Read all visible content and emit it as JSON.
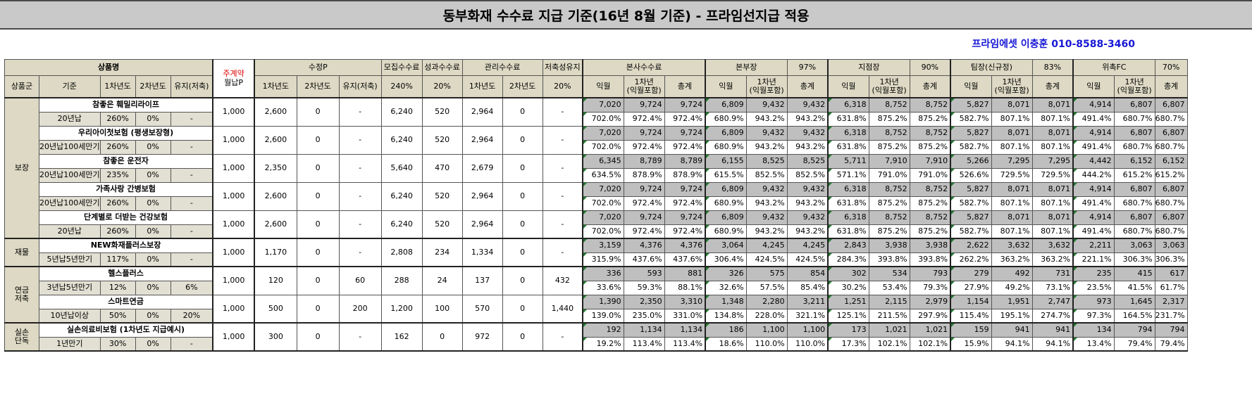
{
  "title": "동부화재 수수료 지급 기준(16년 8월 기준) - 프라임선지급 적용",
  "contact": "프라임에셋 이충훈 010-8588-3460",
  "header": {
    "product_name": "상품명",
    "main_contract_1": "주계약",
    "main_contract_2": "월납P",
    "sujeong_p": "수정P",
    "recruit_fee": "모집수수료",
    "perf_fee": "성과수수료",
    "mgmt_fee": "관리수수료",
    "savings_maint": "저축성유지",
    "hq_fee": "본사수수료",
    "div_head": "본부장",
    "div_head_pct": "97%",
    "branch_head": "지점장",
    "branch_head_pct": "90%",
    "team_lead": "팀장(신규정)",
    "team_lead_pct": "83%",
    "fc": "위촉FC",
    "fc_pct": "70%",
    "sub": {
      "group": "상품군",
      "basis": "기준",
      "year1": "1차년도",
      "year2": "2차년도",
      "maint": "유지(저축)",
      "recruit_pct": "240%",
      "perf_pct": "20%",
      "savings_pct": "20%",
      "next_month": "익월",
      "year1_incl_a": "1차년",
      "year1_incl_b": "(익월포함)",
      "total": "총계"
    }
  },
  "groups": [
    {
      "name": "보장",
      "rows": 5
    },
    {
      "name": "재물",
      "rows": 1
    },
    {
      "name_a": "연금",
      "name_b": "저축",
      "rows": 2
    },
    {
      "name_a": "실손",
      "name_b": "단독",
      "rows": 1
    }
  ],
  "products": [
    {
      "name": "참좋은 훼밀리라이프",
      "basis": "20년납",
      "y1": "260%",
      "y2": "0%",
      "maint": "-",
      "monthly": "1,000",
      "sp_y1": "2,600",
      "sp_y2": "0",
      "sp_maint": "-",
      "recruit": "6,240",
      "perf": "520",
      "mg_y1": "2,964",
      "mg_y2": "0",
      "sav": "-",
      "top": [
        "7,020",
        "9,724",
        "9,724",
        "6,809",
        "9,432",
        "9,432",
        "6,318",
        "8,752",
        "8,752",
        "5,827",
        "8,071",
        "8,071",
        "4,914",
        "6,807",
        "6,807"
      ],
      "bot": [
        "702.0%",
        "972.4%",
        "972.4%",
        "680.9%",
        "943.2%",
        "943.2%",
        "631.8%",
        "875.2%",
        "875.2%",
        "582.7%",
        "807.1%",
        "807.1%",
        "491.4%",
        "680.7%",
        "680.7%"
      ]
    },
    {
      "name": "우리아이첫보험 (평생보장형)",
      "basis": "20년납100세만기",
      "y1": "260%",
      "y2": "0%",
      "maint": "-",
      "monthly": "1,000",
      "sp_y1": "2,600",
      "sp_y2": "0",
      "sp_maint": "-",
      "recruit": "6,240",
      "perf": "520",
      "mg_y1": "2,964",
      "mg_y2": "0",
      "sav": "-",
      "top": [
        "7,020",
        "9,724",
        "9,724",
        "6,809",
        "9,432",
        "9,432",
        "6,318",
        "8,752",
        "8,752",
        "5,827",
        "8,071",
        "8,071",
        "4,914",
        "6,807",
        "6,807"
      ],
      "bot": [
        "702.0%",
        "972.4%",
        "972.4%",
        "680.9%",
        "943.2%",
        "943.2%",
        "631.8%",
        "875.2%",
        "875.2%",
        "582.7%",
        "807.1%",
        "807.1%",
        "491.4%",
        "680.7%",
        "680.7%"
      ]
    },
    {
      "name": "참좋은 운전자",
      "basis": "20년납100세만기",
      "y1": "235%",
      "y2": "0%",
      "maint": "-",
      "monthly": "1,000",
      "sp_y1": "2,350",
      "sp_y2": "0",
      "sp_maint": "-",
      "recruit": "5,640",
      "perf": "470",
      "mg_y1": "2,679",
      "mg_y2": "0",
      "sav": "-",
      "top": [
        "6,345",
        "8,789",
        "8,789",
        "6,155",
        "8,525",
        "8,525",
        "5,711",
        "7,910",
        "7,910",
        "5,266",
        "7,295",
        "7,295",
        "4,442",
        "6,152",
        "6,152"
      ],
      "bot": [
        "634.5%",
        "878.9%",
        "878.9%",
        "615.5%",
        "852.5%",
        "852.5%",
        "571.1%",
        "791.0%",
        "791.0%",
        "526.6%",
        "729.5%",
        "729.5%",
        "444.2%",
        "615.2%",
        "615.2%"
      ]
    },
    {
      "name": "가족사랑 간병보험",
      "basis": "20년납100세만기",
      "y1": "260%",
      "y2": "0%",
      "maint": "-",
      "monthly": "1,000",
      "sp_y1": "2,600",
      "sp_y2": "0",
      "sp_maint": "-",
      "recruit": "6,240",
      "perf": "520",
      "mg_y1": "2,964",
      "mg_y2": "0",
      "sav": "-",
      "top": [
        "7,020",
        "9,724",
        "9,724",
        "6,809",
        "9,432",
        "9,432",
        "6,318",
        "8,752",
        "8,752",
        "5,827",
        "8,071",
        "8,071",
        "4,914",
        "6,807",
        "6,807"
      ],
      "bot": [
        "702.0%",
        "972.4%",
        "972.4%",
        "680.9%",
        "943.2%",
        "943.2%",
        "631.8%",
        "875.2%",
        "875.2%",
        "582.7%",
        "807.1%",
        "807.1%",
        "491.4%",
        "680.7%",
        "680.7%"
      ]
    },
    {
      "name": "단계별로 더받는 건강보험",
      "basis": "20년납",
      "y1": "260%",
      "y2": "0%",
      "maint": "-",
      "monthly": "1,000",
      "sp_y1": "2,600",
      "sp_y2": "0",
      "sp_maint": "-",
      "recruit": "6,240",
      "perf": "520",
      "mg_y1": "2,964",
      "mg_y2": "0",
      "sav": "-",
      "top": [
        "7,020",
        "9,724",
        "9,724",
        "6,809",
        "9,432",
        "9,432",
        "6,318",
        "8,752",
        "8,752",
        "5,827",
        "8,071",
        "8,071",
        "4,914",
        "6,807",
        "6,807"
      ],
      "bot": [
        "702.0%",
        "972.4%",
        "972.4%",
        "680.9%",
        "943.2%",
        "943.2%",
        "631.8%",
        "875.2%",
        "875.2%",
        "582.7%",
        "807.1%",
        "807.1%",
        "491.4%",
        "680.7%",
        "680.7%"
      ]
    },
    {
      "name": "NEW화재플러스보장",
      "basis": "5년납5년만기",
      "y1": "117%",
      "y2": "0%",
      "maint": "-",
      "monthly": "1,000",
      "sp_y1": "1,170",
      "sp_y2": "0",
      "sp_maint": "-",
      "recruit": "2,808",
      "perf": "234",
      "mg_y1": "1,334",
      "mg_y2": "0",
      "sav": "-",
      "top": [
        "3,159",
        "4,376",
        "4,376",
        "3,064",
        "4,245",
        "4,245",
        "2,843",
        "3,938",
        "3,938",
        "2,622",
        "3,632",
        "3,632",
        "2,211",
        "3,063",
        "3,063"
      ],
      "bot": [
        "315.9%",
        "437.6%",
        "437.6%",
        "306.4%",
        "424.5%",
        "424.5%",
        "284.3%",
        "393.8%",
        "393.8%",
        "262.2%",
        "363.2%",
        "363.2%",
        "221.1%",
        "306.3%",
        "306.3%"
      ]
    },
    {
      "name": "헬스플러스",
      "basis": "3년납5년만기",
      "y1": "12%",
      "y2": "0%",
      "maint": "6%",
      "monthly": "1,000",
      "sp_y1": "120",
      "sp_y2": "0",
      "sp_maint": "60",
      "recruit": "288",
      "perf": "24",
      "mg_y1": "137",
      "mg_y2": "0",
      "sav": "432",
      "top": [
        "336",
        "593",
        "881",
        "326",
        "575",
        "854",
        "302",
        "534",
        "793",
        "279",
        "492",
        "731",
        "235",
        "415",
        "617"
      ],
      "bot": [
        "33.6%",
        "59.3%",
        "88.1%",
        "32.6%",
        "57.5%",
        "85.4%",
        "30.2%",
        "53.4%",
        "79.3%",
        "27.9%",
        "49.2%",
        "73.1%",
        "23.5%",
        "41.5%",
        "61.7%"
      ]
    },
    {
      "name": "스마트연금",
      "basis": "10년납이상",
      "y1": "50%",
      "y2": "0%",
      "maint": "20%",
      "monthly": "1,000",
      "sp_y1": "500",
      "sp_y2": "0",
      "sp_maint": "200",
      "recruit": "1,200",
      "perf": "100",
      "mg_y1": "570",
      "mg_y2": "0",
      "sav": "1,440",
      "top": [
        "1,390",
        "2,350",
        "3,310",
        "1,348",
        "2,280",
        "3,211",
        "1,251",
        "2,115",
        "2,979",
        "1,154",
        "1,951",
        "2,747",
        "973",
        "1,645",
        "2,317"
      ],
      "bot": [
        "139.0%",
        "235.0%",
        "331.0%",
        "134.8%",
        "228.0%",
        "321.1%",
        "125.1%",
        "211.5%",
        "297.9%",
        "115.4%",
        "195.1%",
        "274.7%",
        "97.3%",
        "164.5%",
        "231.7%"
      ]
    },
    {
      "name": "실손의료비보험 (1차년도 지급예시)",
      "basis": "1년만기",
      "y1": "30%",
      "y2": "0%",
      "maint": "-",
      "monthly": "1,000",
      "sp_y1": "300",
      "sp_y2": "0",
      "sp_maint": "-",
      "recruit": "162",
      "perf": "0",
      "mg_y1": "972",
      "mg_y2": "0",
      "sav": "-",
      "top": [
        "192",
        "1,134",
        "1,134",
        "186",
        "1,100",
        "1,100",
        "173",
        "1,021",
        "1,021",
        "159",
        "941",
        "941",
        "134",
        "794",
        "794"
      ],
      "bot": [
        "19.2%",
        "113.4%",
        "113.4%",
        "18.6%",
        "110.0%",
        "110.0%",
        "17.3%",
        "102.1%",
        "102.1%",
        "15.9%",
        "94.1%",
        "94.1%",
        "13.4%",
        "79.4%",
        "79.4%"
      ]
    }
  ]
}
